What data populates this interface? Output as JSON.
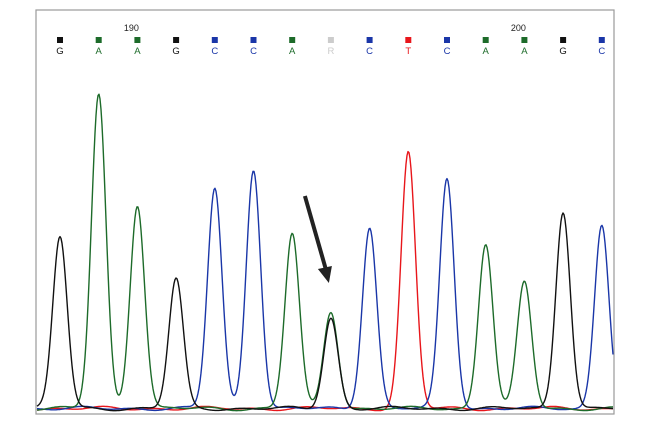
{
  "colors": {
    "G": "#111111",
    "A": "#1d6b2a",
    "C": "#1a36a8",
    "T": "#e8161b",
    "R": "#cccccc",
    "arrow": "#222222",
    "frame": "#9a9a9a"
  },
  "chart_data": {
    "type": "line",
    "title": "",
    "xlabel": "",
    "ylabel": "",
    "position_ticks": [
      {
        "label": "190",
        "index": 2
      },
      {
        "label": "200",
        "index": 12
      }
    ],
    "bases": [
      "G",
      "A",
      "A",
      "G",
      "C",
      "C",
      "A",
      "R",
      "C",
      "T",
      "C",
      "A",
      "A",
      "G",
      "C"
    ],
    "peak_intensity_scale": "relative 0-1",
    "series": [
      {
        "name": "G",
        "peaks": [
          {
            "index": 0,
            "height": 0.53
          },
          {
            "index": 3,
            "height": 0.4
          },
          {
            "index": 7,
            "height": 0.28
          },
          {
            "index": 13,
            "height": 0.61
          }
        ]
      },
      {
        "name": "A",
        "peaks": [
          {
            "index": 1,
            "height": 0.97
          },
          {
            "index": 2,
            "height": 0.63
          },
          {
            "index": 6,
            "height": 0.54
          },
          {
            "index": 7,
            "height": 0.3
          },
          {
            "index": 11,
            "height": 0.51
          },
          {
            "index": 12,
            "height": 0.39
          }
        ]
      },
      {
        "name": "C",
        "peaks": [
          {
            "index": 4,
            "height": 0.68
          },
          {
            "index": 5,
            "height": 0.74
          },
          {
            "index": 8,
            "height": 0.56
          },
          {
            "index": 10,
            "height": 0.71
          },
          {
            "index": 14,
            "height": 0.57
          }
        ]
      },
      {
        "name": "T",
        "peaks": [
          {
            "index": 9,
            "height": 0.79
          }
        ]
      }
    ],
    "annotation": {
      "type": "arrow",
      "target_index": 7
    }
  }
}
